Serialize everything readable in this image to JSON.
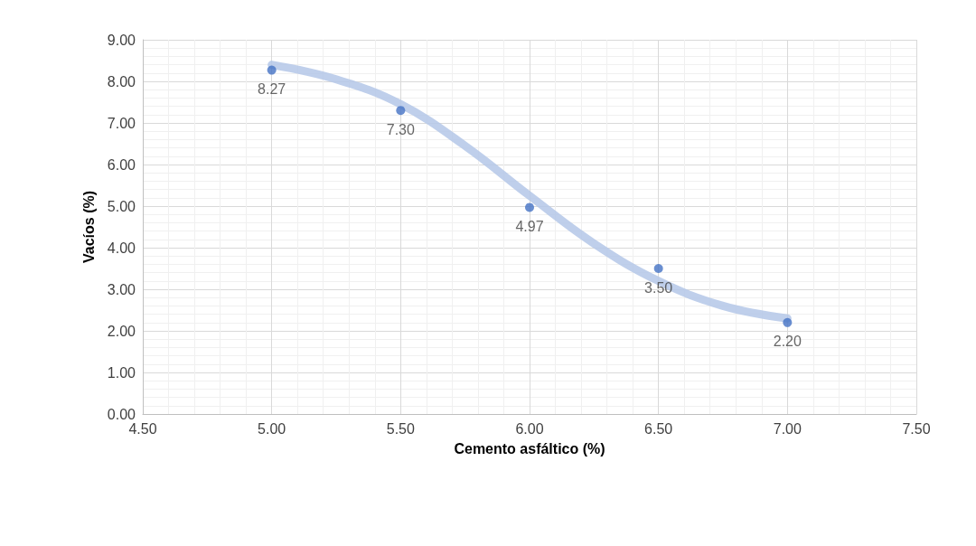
{
  "chart_data": {
    "type": "scatter",
    "xlabel": "Cemento asfáltico (%)",
    "ylabel": "Vacíos (%)",
    "xlim": [
      4.5,
      7.5
    ],
    "xticks": [
      {
        "value": 4.5,
        "label": "4.50"
      },
      {
        "value": 5,
        "label": "5.00"
      },
      {
        "value": 5.5,
        "label": "5.50"
      },
      {
        "value": 6,
        "label": "6.00"
      },
      {
        "value": 6.5,
        "label": "6.50"
      },
      {
        "value": 7,
        "label": "7.00"
      },
      {
        "value": 7.5,
        "label": "7.50"
      }
    ],
    "ylim": [
      0,
      9
    ],
    "yticks": [
      {
        "value": 0,
        "label": "0.00"
      },
      {
        "value": 1,
        "label": "1.00"
      },
      {
        "value": 2,
        "label": "2.00"
      },
      {
        "value": 3,
        "label": "3.00"
      },
      {
        "value": 4,
        "label": "4.00"
      },
      {
        "value": 5,
        "label": "5.00"
      },
      {
        "value": 6,
        "label": "6.00"
      },
      {
        "value": 7,
        "label": "7.00"
      },
      {
        "value": 8,
        "label": "8.00"
      },
      {
        "value": 9,
        "label": "9.00"
      }
    ],
    "grid": true,
    "series": [
      {
        "type": "line",
        "color": "#b4c7e7",
        "marker": "none",
        "x": [
          5.0,
          5.25,
          5.5,
          5.75,
          6.0,
          6.25,
          6.5,
          6.75,
          7.0
        ],
        "values": [
          8.4,
          8.05,
          7.45,
          6.45,
          5.25,
          4.1,
          3.2,
          2.6,
          2.3
        ]
      },
      {
        "color": "#4472c4",
        "marker": "circle",
        "x": [
          5.0,
          5.5,
          6.0,
          6.5,
          7.0
        ],
        "values": [
          8.27,
          7.3,
          4.97,
          3.5,
          2.2
        ],
        "value_labels": [
          "8.27",
          "7.30",
          "4.97",
          "3.50",
          "2.20"
        ]
      }
    ]
  }
}
